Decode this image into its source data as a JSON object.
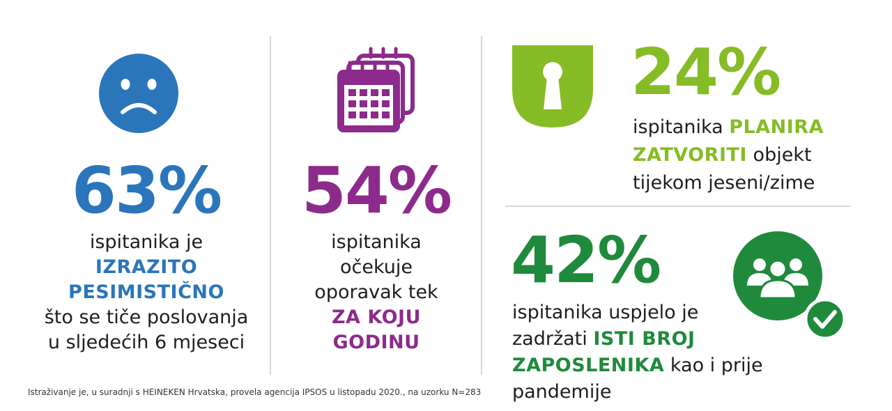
{
  "colors": {
    "blue": "#2b75bb",
    "purple": "#8c2b8b",
    "lime": "#86bc25",
    "green": "#1f8a3c",
    "text": "#1d1d1b",
    "divider": "#d6d6d6"
  },
  "stat1": {
    "icon": "sad-face-icon",
    "value": "63%",
    "line1": "ispitanika je",
    "emph1": "IZRAZITO",
    "emph2": "PESIMISTIČNO",
    "line2": "što se tiče poslovanja",
    "line3": "u sljedećih 6 mjeseci"
  },
  "stat2": {
    "icon": "calendar-icon",
    "value": "54%",
    "line1": "ispitanika",
    "line2": "očekuje",
    "line3": "oporavak tek",
    "emph1": "ZA KOJU",
    "emph2": "GODINU"
  },
  "stat3": {
    "icon": "keyhole-shield-icon",
    "value": "24%",
    "line1_plain": "ispitanika ",
    "line1_emph": "PLANIRA",
    "line2_emph": "ZATVORITI",
    "line2_plain": " objekt",
    "line3": "tijekom jeseni/zime"
  },
  "stat4": {
    "icon": "team-check-icon",
    "value": "42%",
    "line1": "ispitanika uspjelo je",
    "line2_plain": "zadržati ",
    "line2_emph": "ISTI BROJ",
    "line3_emph": "ZAPOSLENIKA",
    "line3_plain": " kao i prije pandemije"
  },
  "footnote": "Istraživanje je, u suradnji s HEINEKEN Hrvatska, provela agencija IPSOS u listopadu 2020., na uzorku N=283"
}
